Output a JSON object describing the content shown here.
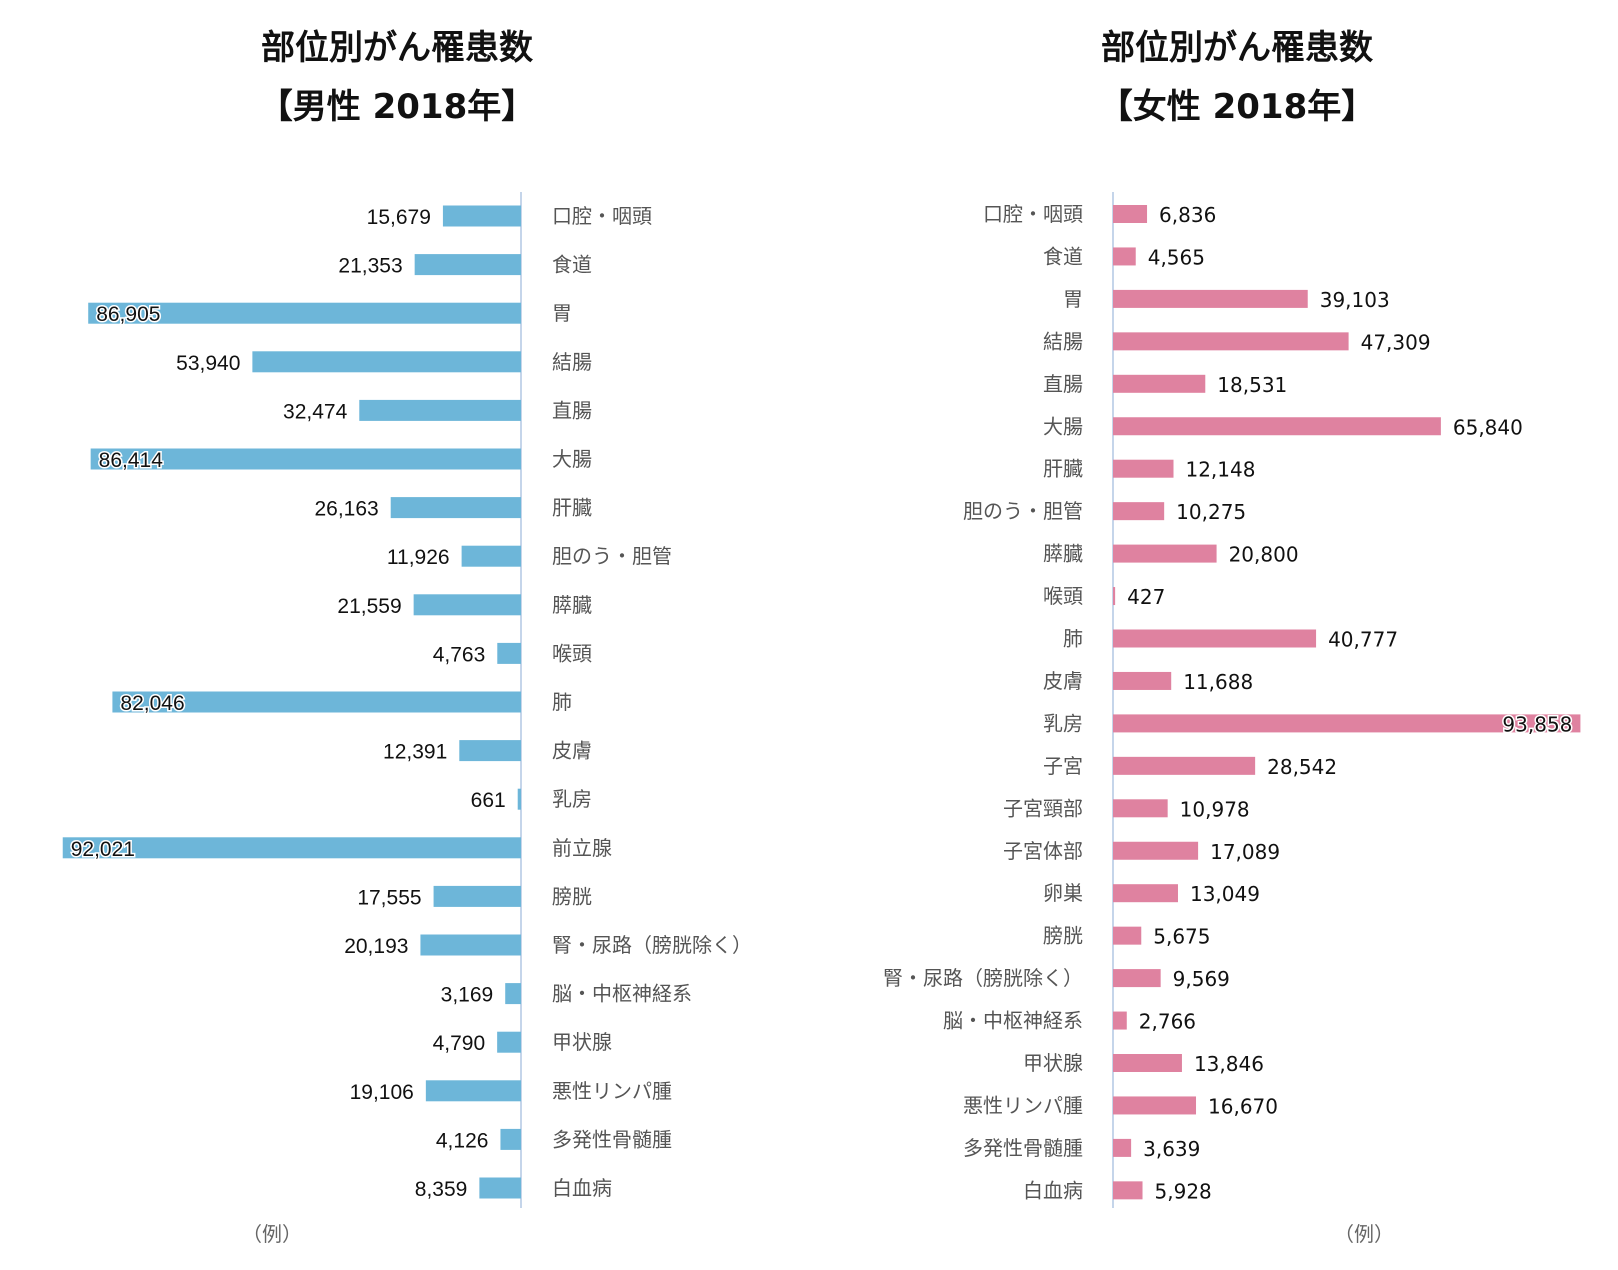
{
  "chart_data": [
    {
      "type": "bar",
      "orientation": "horizontal-reversed",
      "title_line1": "部位別がん罹患数",
      "title_line2": "【男性 2018年】",
      "unit_label": "（例）",
      "color": "#6db6d9",
      "xlim": [
        0,
        100000
      ],
      "grid": false,
      "categories": [
        "口腔・咽頭",
        "食道",
        "胃",
        "結腸",
        "直腸",
        "大腸",
        "肝臓",
        "胆のう・胆管",
        "膵臓",
        "喉頭",
        "肺",
        "皮膚",
        "乳房",
        "前立腺",
        "膀胱",
        "腎・尿路（膀胱除く）",
        "脳・中枢神経系",
        "甲状腺",
        "悪性リンパ腫",
        "多発性骨髄腫",
        "白血病"
      ],
      "values": [
        15679,
        21353,
        86905,
        53940,
        32474,
        86414,
        26163,
        11926,
        21559,
        4763,
        82046,
        12391,
        661,
        92021,
        17555,
        20193,
        3169,
        4790,
        19106,
        4126,
        8359
      ],
      "labels": [
        "15,679",
        "21,353",
        "86,905",
        "53,940",
        "32,474",
        "86,414",
        "26,163",
        "11,926",
        "21,559",
        "4,763",
        "82,046",
        "12,391",
        "661",
        "92,021",
        "17,555",
        "20,193",
        "3,169",
        "4,790",
        "19,106",
        "4,126",
        "8,359"
      ]
    },
    {
      "type": "bar",
      "orientation": "horizontal",
      "title_line1": "部位別がん罹患数",
      "title_line2": "【女性 2018年】",
      "unit_label": "（例）",
      "color": "#df82a0",
      "xlim": [
        0,
        100000
      ],
      "grid": false,
      "categories": [
        "口腔・咽頭",
        "食道",
        "胃",
        "結腸",
        "直腸",
        "大腸",
        "肝臓",
        "胆のう・胆管",
        "膵臓",
        "喉頭",
        "肺",
        "皮膚",
        "乳房",
        "子宮",
        "子宮頸部",
        "子宮体部",
        "卵巣",
        "膀胱",
        "腎・尿路（膀胱除く）",
        "脳・中枢神経系",
        "甲状腺",
        "悪性リンパ腫",
        "多発性骨髄腫",
        "白血病"
      ],
      "values": [
        6836,
        4565,
        39103,
        47309,
        18531,
        65840,
        12148,
        10275,
        20800,
        427,
        40777,
        11688,
        93858,
        28542,
        10978,
        17089,
        13049,
        5675,
        9569,
        2766,
        13846,
        16670,
        3639,
        5928
      ],
      "labels": [
        "6,836",
        "4,565",
        "39,103",
        "47,309",
        "18,531",
        "65,840",
        "12,148",
        "10,275",
        "20,800",
        "427",
        "40,777",
        "11,688",
        "93,858",
        "28,542",
        "10,978",
        "17,089",
        "13,049",
        "5,675",
        "9,569",
        "2,766",
        "13,846",
        "16,670",
        "3,639",
        "5,928"
      ]
    }
  ]
}
